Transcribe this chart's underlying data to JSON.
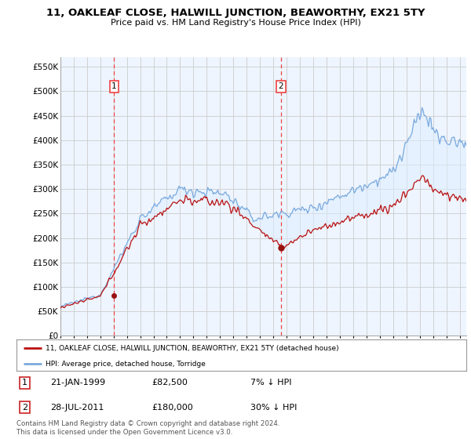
{
  "title": "11, OAKLEAF CLOSE, HALWILL JUNCTION, BEAWORTHY, EX21 5TY",
  "subtitle": "Price paid vs. HM Land Registry's House Price Index (HPI)",
  "legend_line1": "11, OAKLEAF CLOSE, HALWILL JUNCTION, BEAWORTHY, EX21 5TY (detached house)",
  "legend_line2": "HPI: Average price, detached house, Torridge",
  "annotation1": {
    "num": "1",
    "date": "21-JAN-1999",
    "price": "£82,500",
    "pct": "7% ↓ HPI"
  },
  "annotation2": {
    "num": "2",
    "date": "28-JUL-2011",
    "price": "£180,000",
    "pct": "30% ↓ HPI"
  },
  "footer": "Contains HM Land Registry data © Crown copyright and database right 2024.\nThis data is licensed under the Open Government Licence v3.0.",
  "hpi_color": "#7aaadd",
  "price_color": "#bb1111",
  "fill_color": "#ddeeff",
  "vline_color": "#ee4444",
  "dot_color": "#991111",
  "background_color": "#ffffff",
  "grid_color": "#cccccc",
  "ylim": [
    0,
    570000
  ],
  "yticks": [
    0,
    50000,
    100000,
    150000,
    200000,
    250000,
    300000,
    350000,
    400000,
    450000,
    500000,
    550000
  ],
  "sale1_x": 1999.05,
  "sale1_y": 82500,
  "sale2_x": 2011.56,
  "sale2_y": 180000,
  "xlim_left": 1995.0,
  "xlim_right": 2025.5
}
